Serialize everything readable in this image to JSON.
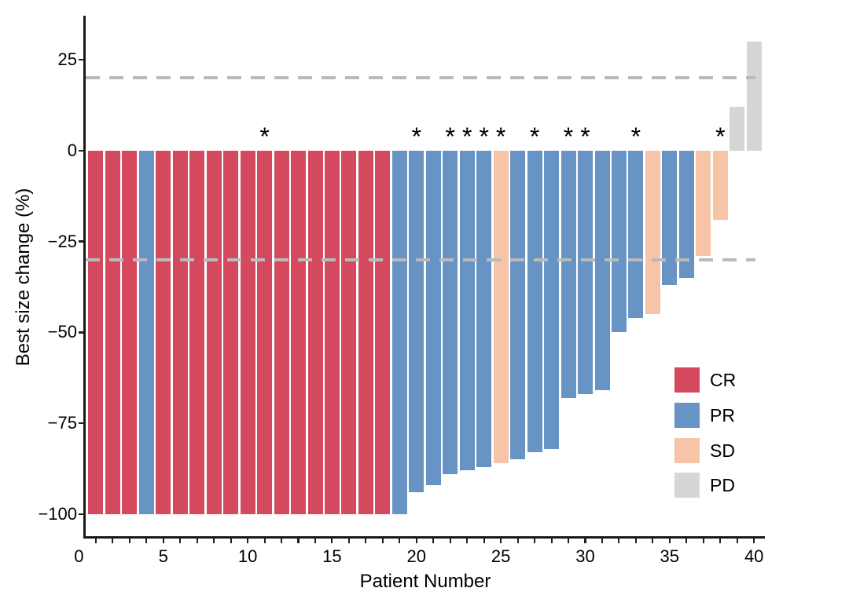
{
  "chart_data": {
    "type": "bar",
    "variant": "waterfall",
    "title": "",
    "xlabel": "Patient Number",
    "ylabel": "Best size change (%)",
    "xlim": [
      0,
      41
    ],
    "ylim": [
      -106,
      37
    ],
    "grid": false,
    "legend_position": "right-middle",
    "star_marker": "*",
    "colors": {
      "CR": "#d5495f",
      "PR": "#6793c5",
      "SD": "#f8c4a7",
      "PD": "#d6d6d6",
      "threshold_dash": "#bababa",
      "axis": "#1a1a1a"
    },
    "threshold_lines": [
      {
        "value": 20,
        "style": "dashed"
      },
      {
        "value": -30,
        "style": "dashed"
      }
    ],
    "y_ticks": [
      {
        "label": "25",
        "value": 25
      },
      {
        "label": "0",
        "value": 0
      },
      {
        "label": "−25",
        "value": -25
      },
      {
        "label": "−50",
        "value": -50
      },
      {
        "label": "−75",
        "value": -75
      },
      {
        "label": "−100",
        "value": -100
      }
    ],
    "x_tick_labels": [
      {
        "label": "0",
        "value": 0
      },
      {
        "label": "5",
        "value": 5
      },
      {
        "label": "10",
        "value": 10
      },
      {
        "label": "15",
        "value": 15
      },
      {
        "label": "20",
        "value": 20
      },
      {
        "label": "25",
        "value": 25
      },
      {
        "label": "30",
        "value": 30
      },
      {
        "label": "35",
        "value": 35
      },
      {
        "label": "40",
        "value": 40
      }
    ],
    "x_minor_ticks": {
      "from": 1,
      "to": 40,
      "step": 1
    },
    "legend": [
      {
        "label": "CR",
        "response": "CR"
      },
      {
        "label": "PR",
        "response": "PR"
      },
      {
        "label": "SD",
        "response": "SD"
      },
      {
        "label": "PD",
        "response": "PD"
      }
    ],
    "patients": [
      {
        "n": 1,
        "value": -100,
        "response": "CR",
        "star": false
      },
      {
        "n": 2,
        "value": -100,
        "response": "CR",
        "star": false
      },
      {
        "n": 3,
        "value": -100,
        "response": "CR",
        "star": false
      },
      {
        "n": 4,
        "value": -100,
        "response": "PR",
        "star": false
      },
      {
        "n": 5,
        "value": -100,
        "response": "CR",
        "star": false
      },
      {
        "n": 6,
        "value": -100,
        "response": "CR",
        "star": false
      },
      {
        "n": 7,
        "value": -100,
        "response": "CR",
        "star": false
      },
      {
        "n": 8,
        "value": -100,
        "response": "CR",
        "star": false
      },
      {
        "n": 9,
        "value": -100,
        "response": "CR",
        "star": false
      },
      {
        "n": 10,
        "value": -100,
        "response": "CR",
        "star": false
      },
      {
        "n": 11,
        "value": -100,
        "response": "CR",
        "star": true
      },
      {
        "n": 12,
        "value": -100,
        "response": "CR",
        "star": false
      },
      {
        "n": 13,
        "value": -100,
        "response": "CR",
        "star": false
      },
      {
        "n": 14,
        "value": -100,
        "response": "CR",
        "star": false
      },
      {
        "n": 15,
        "value": -100,
        "response": "CR",
        "star": false
      },
      {
        "n": 16,
        "value": -100,
        "response": "CR",
        "star": false
      },
      {
        "n": 17,
        "value": -100,
        "response": "CR",
        "star": false
      },
      {
        "n": 18,
        "value": -100,
        "response": "CR",
        "star": false
      },
      {
        "n": 19,
        "value": -100,
        "response": "PR",
        "star": false
      },
      {
        "n": 20,
        "value": -94,
        "response": "PR",
        "star": true
      },
      {
        "n": 21,
        "value": -92,
        "response": "PR",
        "star": false
      },
      {
        "n": 22,
        "value": -89,
        "response": "PR",
        "star": true
      },
      {
        "n": 23,
        "value": -88,
        "response": "PR",
        "star": true
      },
      {
        "n": 24,
        "value": -87,
        "response": "PR",
        "star": true
      },
      {
        "n": 25,
        "value": -86,
        "response": "SD",
        "star": true
      },
      {
        "n": 26,
        "value": -85,
        "response": "PR",
        "star": false
      },
      {
        "n": 27,
        "value": -83,
        "response": "PR",
        "star": true
      },
      {
        "n": 28,
        "value": -82,
        "response": "PR",
        "star": false
      },
      {
        "n": 29,
        "value": -68,
        "response": "PR",
        "star": true
      },
      {
        "n": 30,
        "value": -67,
        "response": "PR",
        "star": true
      },
      {
        "n": 31,
        "value": -66,
        "response": "PR",
        "star": false
      },
      {
        "n": 32,
        "value": -50,
        "response": "PR",
        "star": false
      },
      {
        "n": 33,
        "value": -46,
        "response": "PR",
        "star": true
      },
      {
        "n": 34,
        "value": -45,
        "response": "SD",
        "star": false
      },
      {
        "n": 35,
        "value": -37,
        "response": "PR",
        "star": false
      },
      {
        "n": 36,
        "value": -35,
        "response": "PR",
        "star": false
      },
      {
        "n": 37,
        "value": -29,
        "response": "SD",
        "star": false
      },
      {
        "n": 38,
        "value": -19,
        "response": "SD",
        "star": true
      },
      {
        "n": 39,
        "value": 12,
        "response": "PD",
        "star": false
      },
      {
        "n": 40,
        "value": 30,
        "response": "PD",
        "star": false
      }
    ]
  }
}
